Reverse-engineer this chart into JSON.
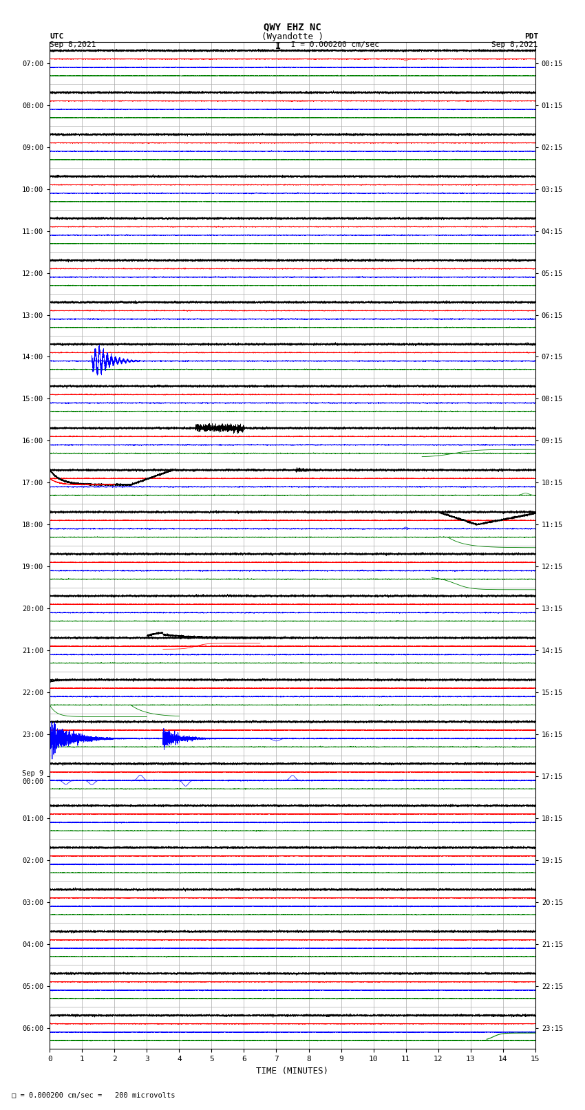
{
  "title": "QWY EHZ NC",
  "subtitle": "(Wyandotte )",
  "scale_text": " I = 0.000200 cm/sec",
  "footnote": "= 0.000200 cm/sec =   200 microvolts",
  "xlabel": "TIME (MINUTES)",
  "left_label": "UTC",
  "left_date": "Sep 8,2021",
  "right_label": "PDT",
  "right_date": "Sep 8,2021",
  "utc_times": [
    "07:00",
    "08:00",
    "09:00",
    "10:00",
    "11:00",
    "12:00",
    "13:00",
    "14:00",
    "15:00",
    "16:00",
    "17:00",
    "18:00",
    "19:00",
    "20:00",
    "21:00",
    "22:00",
    "23:00",
    "Sep 9\n00:00",
    "01:00",
    "02:00",
    "03:00",
    "04:00",
    "05:00",
    "06:00"
  ],
  "pdt_times": [
    "00:15",
    "01:15",
    "02:15",
    "03:15",
    "04:15",
    "05:15",
    "06:15",
    "07:15",
    "08:15",
    "09:15",
    "10:15",
    "11:15",
    "12:15",
    "13:15",
    "14:15",
    "15:15",
    "16:15",
    "17:15",
    "18:15",
    "19:15",
    "20:15",
    "21:15",
    "22:15",
    "23:15"
  ],
  "n_rows": 24,
  "xmin": 0,
  "xmax": 15,
  "colors": [
    "black",
    "red",
    "blue",
    "green"
  ],
  "bg_color": "white",
  "grid_color": "#aaaaaa",
  "figwidth": 8.5,
  "figheight": 16.13
}
